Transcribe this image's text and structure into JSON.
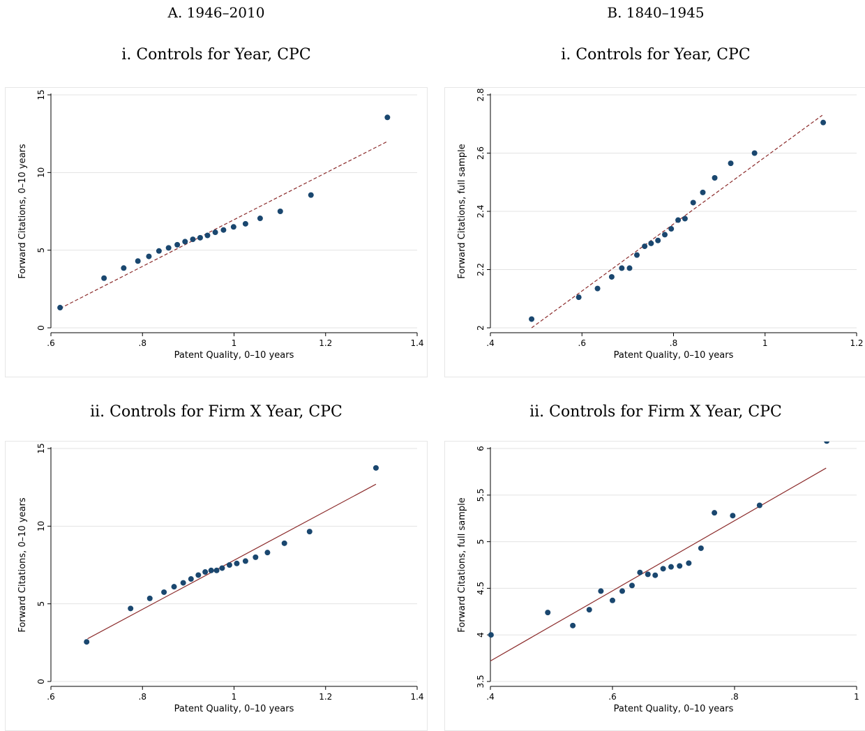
{
  "columns": [
    "A. 1946–2010",
    "B. 1840–1945"
  ],
  "chart_data": [
    {
      "type": "scatter",
      "title": "i. Controls for Year, CPC",
      "xlabel": "Patent Quality, 0–10 years",
      "ylabel": "Forward Citations, 0–10 years",
      "xlim": [
        0.6,
        1.4
      ],
      "ylim": [
        0,
        15
      ],
      "xticks": [
        0.6,
        0.8,
        1,
        1.2,
        1.4
      ],
      "xtick_labels": [
        ".6",
        ".8",
        "1",
        "1.2",
        "1.4"
      ],
      "yticks": [
        0,
        5,
        10,
        15
      ],
      "ytick_labels": [
        "0",
        "5",
        "10",
        "15"
      ],
      "grid": true,
      "x": [
        0.62,
        0.716,
        0.759,
        0.79,
        0.814,
        0.836,
        0.857,
        0.876,
        0.893,
        0.91,
        0.926,
        0.942,
        0.959,
        0.977,
        0.999,
        1.025,
        1.057,
        1.101,
        1.168,
        1.335
      ],
      "y": [
        1.3,
        3.2,
        3.85,
        4.3,
        4.6,
        4.95,
        5.15,
        5.35,
        5.55,
        5.7,
        5.8,
        5.95,
        6.15,
        6.3,
        6.5,
        6.7,
        7.05,
        7.5,
        8.55,
        13.55
      ],
      "fit": {
        "x": [
          0.62,
          1.335
        ],
        "y": [
          1.25,
          12.0
        ],
        "style": "dashed"
      },
      "marker_color": "#1a476f",
      "line_color": "#8b2a2a"
    },
    {
      "type": "scatter",
      "title": "i. Controls for Year, CPC",
      "xlabel": "Patent Quality, 0–10 years",
      "ylabel": "Forward Citations, full sample",
      "xlim": [
        0.4,
        1.2
      ],
      "ylim": [
        2,
        2.8
      ],
      "xticks": [
        0.4,
        0.6,
        0.8,
        1,
        1.2
      ],
      "xtick_labels": [
        ".4",
        ".6",
        ".8",
        "1",
        "1.2"
      ],
      "yticks": [
        2,
        2.2,
        2.4,
        2.6,
        2.8
      ],
      "ytick_labels": [
        "2",
        "2.2",
        "2.4",
        "2.6",
        "2.8"
      ],
      "grid": true,
      "x": [
        0.49,
        0.593,
        0.634,
        0.665,
        0.687,
        0.704,
        0.72,
        0.737,
        0.751,
        0.766,
        0.781,
        0.795,
        0.81,
        0.825,
        0.843,
        0.864,
        0.89,
        0.925,
        0.977,
        1.127
      ],
      "y": [
        2.03,
        2.105,
        2.135,
        2.175,
        2.205,
        2.205,
        2.25,
        2.28,
        2.29,
        2.3,
        2.32,
        2.34,
        2.37,
        2.375,
        2.43,
        2.465,
        2.515,
        2.565,
        2.6,
        2.705
      ],
      "fit": {
        "x": [
          0.49,
          1.125
        ],
        "y": [
          2.0,
          2.73
        ],
        "style": "dashed"
      },
      "marker_color": "#1a476f",
      "line_color": "#8b2a2a"
    },
    {
      "type": "scatter",
      "title": "ii. Controls for Firm X Year, CPC",
      "xlabel": "Patent Quality, 0–10 years",
      "ylabel": "Forward Citations, 0–10 years",
      "xlim": [
        0.6,
        1.4
      ],
      "ylim": [
        0,
        15
      ],
      "xticks": [
        0.6,
        0.8,
        1,
        1.2,
        1.4
      ],
      "xtick_labels": [
        ".6",
        ".8",
        "1",
        "1.2",
        "1.4"
      ],
      "yticks": [
        0,
        5,
        10,
        15
      ],
      "ytick_labels": [
        "0",
        "5",
        "10",
        "15"
      ],
      "grid": true,
      "x": [
        0.678,
        0.774,
        0.816,
        0.847,
        0.869,
        0.889,
        0.906,
        0.922,
        0.937,
        0.95,
        0.962,
        0.974,
        0.99,
        1.006,
        1.025,
        1.047,
        1.073,
        1.11,
        1.165,
        1.31
      ],
      "y": [
        2.55,
        4.7,
        5.35,
        5.75,
        6.1,
        6.35,
        6.6,
        6.85,
        7.05,
        7.15,
        7.15,
        7.3,
        7.5,
        7.6,
        7.75,
        8.0,
        8.3,
        8.9,
        9.65,
        13.75
      ],
      "fit": {
        "x": [
          0.68,
          1.31
        ],
        "y": [
          2.75,
          12.7
        ],
        "style": "solid"
      },
      "marker_color": "#1a476f",
      "line_color": "#8b2a2a"
    },
    {
      "type": "scatter",
      "title": "ii. Controls for Firm X Year, CPC",
      "xlabel": "Patent Quality, 0–10 years",
      "ylabel": "Forward Citations, full sample",
      "xlim": [
        0.4,
        1.0
      ],
      "ylim": [
        3.5,
        6.0
      ],
      "xticks": [
        0.4,
        0.6,
        0.8,
        1
      ],
      "xtick_labels": [
        ".4",
        ".6",
        ".8",
        "1"
      ],
      "yticks": [
        3.5,
        4,
        4.5,
        5,
        5.5,
        6
      ],
      "ytick_labels": [
        "3.5",
        "4",
        "4.5",
        "5",
        "5.5",
        "6"
      ],
      "grid": true,
      "x": [
        0.401,
        0.494,
        0.535,
        0.562,
        0.581,
        0.6,
        0.616,
        0.632,
        0.645,
        0.658,
        0.67,
        0.683,
        0.696,
        0.71,
        0.725,
        0.745,
        0.767,
        0.797,
        0.841,
        0.951
      ],
      "y": [
        4.0,
        4.24,
        4.1,
        4.27,
        4.47,
        4.37,
        4.47,
        4.53,
        4.67,
        4.65,
        4.64,
        4.71,
        4.73,
        4.74,
        4.77,
        4.93,
        5.31,
        5.28,
        5.39,
        6.08
      ],
      "fit": {
        "x": [
          0.4,
          0.95
        ],
        "y": [
          3.72,
          5.79
        ],
        "style": "solid"
      },
      "marker_color": "#1a476f",
      "line_color": "#8b2a2a"
    }
  ]
}
